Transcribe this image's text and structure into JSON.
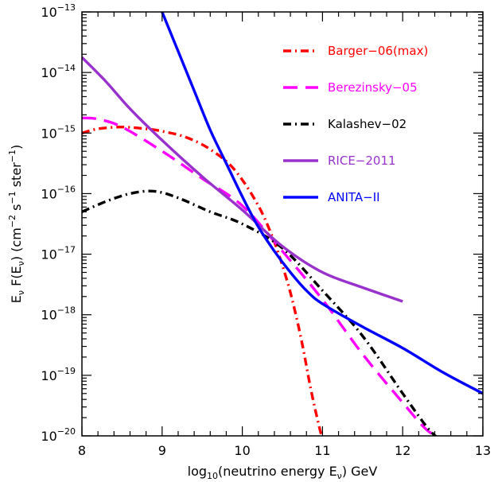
{
  "chart_data": {
    "type": "line",
    "title": "",
    "xlabel": {
      "base": "log",
      "sub": "10",
      "rest": "(neutrino energy E",
      "nu": "ν",
      "tail": ") GeV"
    },
    "ylabel": "E_ν F(E_ν) (cm⁻² s⁻¹ ster⁻¹)",
    "ylabel_parts": {
      "e": "E",
      "nu": "ν",
      "f": " F(E",
      "unit": ") (cm",
      "exp1": "−2",
      "s": " s",
      "exp2": "−1",
      "ster": " ster",
      "exp3": "−1",
      "close": ")"
    },
    "xlim": [
      8,
      13
    ],
    "ylim_log10": [
      -20,
      -13
    ],
    "y_scale": "log",
    "grid": false,
    "legend_position": "top-right",
    "x_ticks": [
      {
        "value": 8,
        "label": "8"
      },
      {
        "value": 9,
        "label": "9"
      },
      {
        "value": 10,
        "label": "10"
      },
      {
        "value": 11,
        "label": "11"
      },
      {
        "value": 12,
        "label": "12"
      },
      {
        "value": 13,
        "label": "13"
      }
    ],
    "y_ticks": [
      {
        "exp": -20,
        "base": "10",
        "power": "−20"
      },
      {
        "exp": -19,
        "base": "10",
        "power": "−19"
      },
      {
        "exp": -18,
        "base": "10",
        "power": "−18"
      },
      {
        "exp": -17,
        "base": "10",
        "power": "−17"
      },
      {
        "exp": -16,
        "base": "10",
        "power": "−16"
      },
      {
        "exp": -15,
        "base": "10",
        "power": "−15"
      },
      {
        "exp": -14,
        "base": "10",
        "power": "−14"
      },
      {
        "exp": -13,
        "base": "10",
        "power": "−13"
      }
    ],
    "series": [
      {
        "name": "Barger−06(max)",
        "color": "#ff0000",
        "dash": "dash-dot",
        "x": [
          8.0,
          8.2,
          8.5,
          8.8,
          9.0,
          9.3,
          9.6,
          9.9,
          10.2,
          10.4,
          10.55,
          10.65,
          10.75,
          10.85,
          10.95,
          11.0
        ],
        "y_log10": [
          -15.0,
          -14.93,
          -14.9,
          -14.93,
          -14.97,
          -15.07,
          -15.27,
          -15.6,
          -16.2,
          -16.8,
          -17.4,
          -17.9,
          -18.5,
          -19.2,
          -19.8,
          -20.05
        ]
      },
      {
        "name": "Berezinsky−05",
        "color": "#ff00ff",
        "dash": "long-dash",
        "x": [
          8.0,
          8.2,
          8.5,
          9.0,
          9.5,
          10.0,
          10.5,
          11.0,
          11.5,
          12.0,
          12.3,
          12.5
        ],
        "y_log10": [
          -14.75,
          -14.77,
          -14.9,
          -15.3,
          -15.75,
          -16.2,
          -16.95,
          -17.75,
          -18.65,
          -19.45,
          -19.9,
          -20.05
        ]
      },
      {
        "name": "Kalashev−02",
        "color": "#000000",
        "dash": "dash-dot",
        "x": [
          8.0,
          8.3,
          8.6,
          8.9,
          9.2,
          9.6,
          10.0,
          10.5,
          11.0,
          11.5,
          12.0,
          12.3,
          12.45
        ],
        "y_log10": [
          -16.3,
          -16.13,
          -16.0,
          -15.96,
          -16.07,
          -16.3,
          -16.5,
          -16.9,
          -17.6,
          -18.35,
          -19.3,
          -19.85,
          -20.05
        ]
      },
      {
        "name": "RICE−2011",
        "color": "#9932cc",
        "dash": "solid",
        "x": [
          8.0,
          8.3,
          8.6,
          9.0,
          9.5,
          10.0,
          10.5,
          11.0,
          11.5,
          12.0
        ],
        "y_log10": [
          -13.75,
          -14.15,
          -14.6,
          -15.12,
          -15.72,
          -16.27,
          -16.87,
          -17.3,
          -17.55,
          -17.78
        ]
      },
      {
        "name": "ANITA−II",
        "color": "#0000ff",
        "dash": "solid",
        "x": [
          9.0,
          9.2,
          9.4,
          9.6,
          9.8,
          10.0,
          10.2,
          10.4,
          10.6,
          10.8,
          11.0,
          11.5,
          12.0,
          12.5,
          13.0
        ],
        "y_log10": [
          -13.0,
          -13.65,
          -14.3,
          -14.95,
          -15.5,
          -16.05,
          -16.55,
          -16.95,
          -17.3,
          -17.6,
          -17.82,
          -18.2,
          -18.55,
          -18.95,
          -19.3
        ]
      }
    ]
  }
}
